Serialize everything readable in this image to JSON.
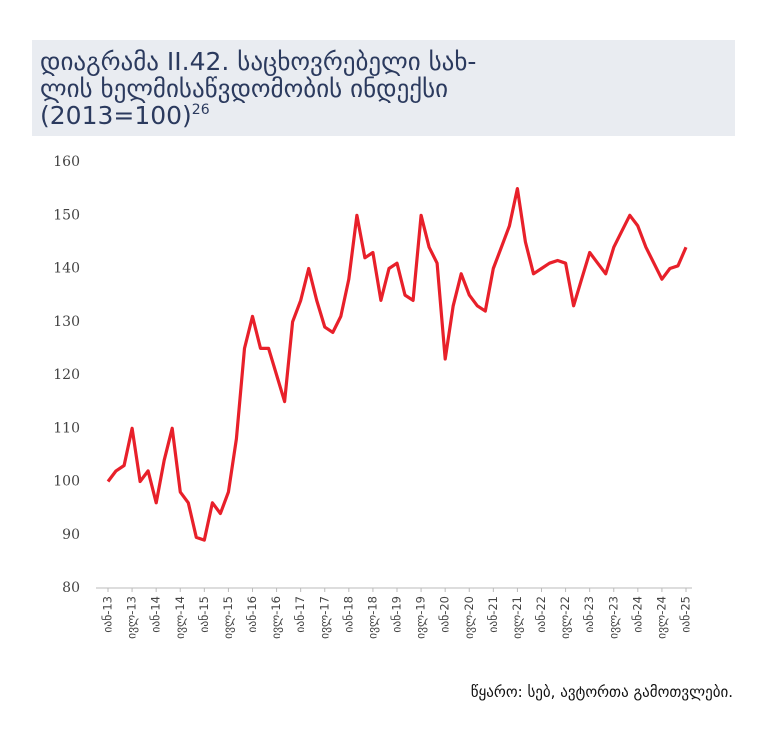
{
  "chart_data": {
    "type": "line",
    "title": [
      "დიაგრამა II.42. საცხოვრებელი სახ-",
      "ლის ხელმისაწვდომობის ინდექსი",
      "(2013=100)"
    ],
    "title_footnote": "26",
    "source": "წყარო: სებ, ავტორთა გამოთვლები.",
    "categories": [
      "იან-13",
      null,
      null,
      "ივლ-13",
      null,
      null,
      "იან-14",
      null,
      null,
      "ივლ-14",
      null,
      null,
      "იან-15",
      null,
      null,
      "ივლ-15",
      null,
      null,
      "იან-16",
      null,
      null,
      "ივლ-16",
      null,
      null,
      "იან-17",
      null,
      null,
      "ივლ-17",
      null,
      null,
      "იან-18",
      null,
      null,
      "ივლ-18",
      null,
      null,
      "იან-19",
      null,
      null,
      "ივლ-19",
      null,
      null,
      "იან-20",
      null,
      null,
      "ივლ-20",
      null,
      null,
      "იან-21",
      null,
      null,
      "ივლ-21",
      null,
      null,
      "იან-22",
      null,
      null,
      "ივლ-22",
      null,
      null,
      "იან-23",
      null,
      null,
      "ივლ-23",
      null,
      null,
      "იან-24",
      null,
      null,
      "ივლ-24",
      null,
      null,
      "იან-25"
    ],
    "series": [
      {
        "color": "#e8202a",
        "values": [
          100,
          102,
          103,
          110,
          100,
          102,
          96,
          104,
          110,
          98,
          96,
          89.5,
          89,
          96,
          94,
          98,
          108,
          125,
          131,
          125,
          125,
          120,
          115,
          130,
          134,
          140,
          134,
          129,
          128,
          131,
          138,
          150,
          142,
          143,
          134,
          140,
          141,
          135,
          134,
          150,
          144,
          141,
          123,
          133,
          139,
          135,
          133,
          132,
          140,
          144,
          148,
          155,
          145,
          139,
          140,
          141,
          141.5,
          141,
          133,
          138,
          143,
          141,
          139,
          144,
          147,
          150,
          148,
          144,
          141,
          138,
          140,
          140.5,
          144
        ]
      }
    ],
    "ylim": [
      80,
      160
    ],
    "yticks": [
      80,
      90,
      100,
      110,
      120,
      130,
      140,
      150,
      160
    ],
    "grid": false
  }
}
